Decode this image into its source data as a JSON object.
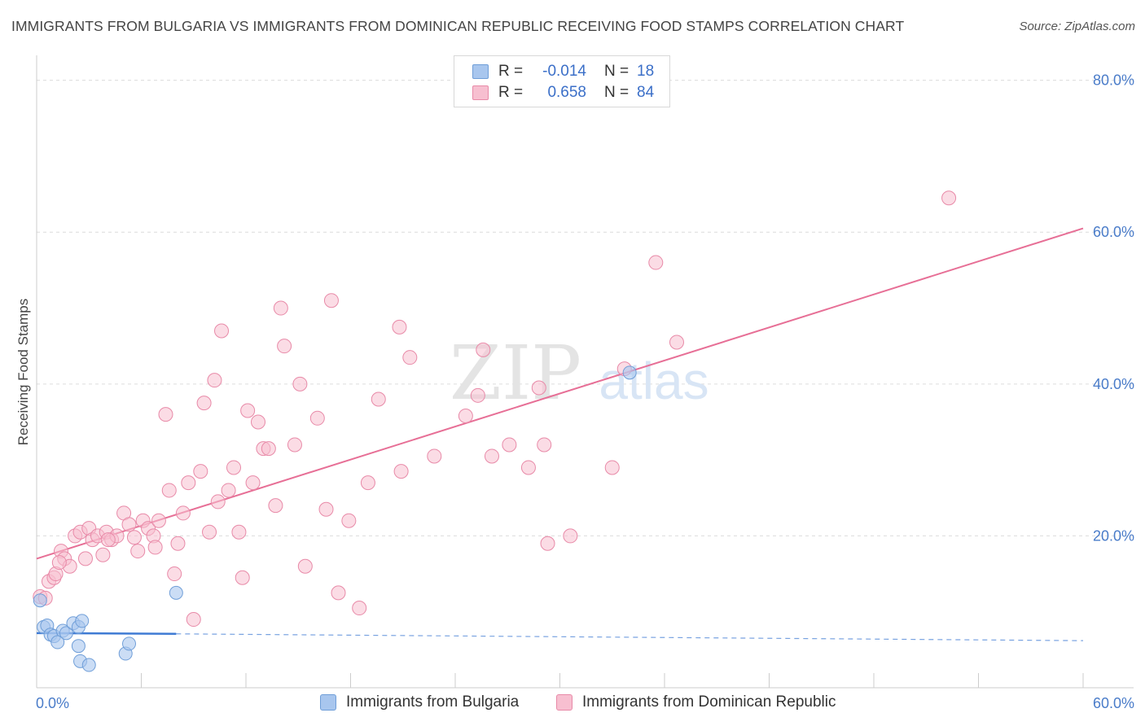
{
  "title": "IMMIGRANTS FROM BULGARIA VS IMMIGRANTS FROM DOMINICAN REPUBLIC RECEIVING FOOD STAMPS CORRELATION CHART",
  "source": "Source: ZipAtlas.com",
  "watermark": {
    "zip": "ZIP",
    "atlas": "atlas"
  },
  "legend": {
    "rows": [
      {
        "r_label": "R =",
        "r_value": "-0.014",
        "n_label": "N =",
        "n_value": "18",
        "color": "#a8c6ee",
        "border": "#6f9ed8"
      },
      {
        "r_label": "R =",
        "r_value": "0.658",
        "n_label": "N =",
        "n_value": "84",
        "color": "#f7bfd0",
        "border": "#e88aa8"
      }
    ]
  },
  "bottom_legend": {
    "bulgaria": "Immigrants from Bulgaria",
    "dominican": "Immigrants from Dominican Republic"
  },
  "chart_data": {
    "type": "scatter",
    "xlabel": "",
    "ylabel": "Receiving Food Stamps",
    "xlim": [
      0,
      60
    ],
    "ylim": [
      0,
      82
    ],
    "x_ticks": [
      "0.0%",
      "60.0%"
    ],
    "y_ticks": [
      "20.0%",
      "40.0%",
      "60.0%",
      "80.0%"
    ],
    "y_tick_values": [
      20,
      40,
      60,
      80
    ],
    "grid": true,
    "colors": {
      "bulgaria": "#6f9ed8",
      "bulgaria_fill": "#a8c6ee",
      "dominican": "#e88aa8",
      "dominican_fill": "#f7bfd0",
      "bulgaria_line": "#3f7bd4",
      "dominican_line": "#e76f96"
    },
    "series": [
      {
        "name": "Immigrants from Bulgaria",
        "points": [
          [
            0.2,
            11.5
          ],
          [
            0.4,
            8.0
          ],
          [
            0.6,
            8.2
          ],
          [
            0.8,
            7.0
          ],
          [
            1.0,
            6.8
          ],
          [
            1.2,
            6.0
          ],
          [
            1.5,
            7.5
          ],
          [
            1.7,
            7.2
          ],
          [
            2.1,
            8.5
          ],
          [
            2.4,
            8.0
          ],
          [
            2.6,
            8.8
          ],
          [
            2.5,
            3.5
          ],
          [
            3.0,
            3.0
          ],
          [
            2.4,
            5.5
          ],
          [
            5.1,
            4.5
          ],
          [
            5.3,
            5.8
          ],
          [
            8.0,
            12.5
          ],
          [
            34.0,
            41.5
          ]
        ],
        "trend": {
          "x": [
            0,
            8.0
          ],
          "y": [
            7.2,
            7.1
          ],
          "dashed_to": [
            60,
            6.2
          ]
        }
      },
      {
        "name": "Immigrants from Dominican Republic",
        "points": [
          [
            0.2,
            12.0
          ],
          [
            0.5,
            11.8
          ],
          [
            0.7,
            14.0
          ],
          [
            1.0,
            14.5
          ],
          [
            1.1,
            15.0
          ],
          [
            1.4,
            18.0
          ],
          [
            1.6,
            17.0
          ],
          [
            1.9,
            16.0
          ],
          [
            2.2,
            20.0
          ],
          [
            2.5,
            20.5
          ],
          [
            2.8,
            17.0
          ],
          [
            3.0,
            21.0
          ],
          [
            3.2,
            19.5
          ],
          [
            3.5,
            20.0
          ],
          [
            3.8,
            17.5
          ],
          [
            4.0,
            20.5
          ],
          [
            4.3,
            19.5
          ],
          [
            4.6,
            20.0
          ],
          [
            5.0,
            23.0
          ],
          [
            5.3,
            21.5
          ],
          [
            5.6,
            19.8
          ],
          [
            5.8,
            18.0
          ],
          [
            6.1,
            22.0
          ],
          [
            6.4,
            21.0
          ],
          [
            6.7,
            20.0
          ],
          [
            7.0,
            22.0
          ],
          [
            7.4,
            36.0
          ],
          [
            7.6,
            26.0
          ],
          [
            7.9,
            15.0
          ],
          [
            8.1,
            19.0
          ],
          [
            8.4,
            23.0
          ],
          [
            8.7,
            27.0
          ],
          [
            9.0,
            9.0
          ],
          [
            9.4,
            28.5
          ],
          [
            9.6,
            37.5
          ],
          [
            9.9,
            20.5
          ],
          [
            10.2,
            40.5
          ],
          [
            10.4,
            24.5
          ],
          [
            10.6,
            47.0
          ],
          [
            11.0,
            26.0
          ],
          [
            11.3,
            29.0
          ],
          [
            11.6,
            20.5
          ],
          [
            11.8,
            14.5
          ],
          [
            12.1,
            36.5
          ],
          [
            12.4,
            27.0
          ],
          [
            12.7,
            35.0
          ],
          [
            13.0,
            31.5
          ],
          [
            13.3,
            31.5
          ],
          [
            13.7,
            24.0
          ],
          [
            14.0,
            50.0
          ],
          [
            14.2,
            45.0
          ],
          [
            14.8,
            32.0
          ],
          [
            15.1,
            40.0
          ],
          [
            15.4,
            16.0
          ],
          [
            16.1,
            35.5
          ],
          [
            16.6,
            23.5
          ],
          [
            16.9,
            51.0
          ],
          [
            17.3,
            12.5
          ],
          [
            17.9,
            22.0
          ],
          [
            18.5,
            10.5
          ],
          [
            19.0,
            27.0
          ],
          [
            19.6,
            38.0
          ],
          [
            20.8,
            47.5
          ],
          [
            20.9,
            28.5
          ],
          [
            21.4,
            43.5
          ],
          [
            22.8,
            30.5
          ],
          [
            24.6,
            35.8
          ],
          [
            25.3,
            38.5
          ],
          [
            25.6,
            44.5
          ],
          [
            26.1,
            30.5
          ],
          [
            27.1,
            32.0
          ],
          [
            28.2,
            29.0
          ],
          [
            28.8,
            39.5
          ],
          [
            29.1,
            32.0
          ],
          [
            29.3,
            19.0
          ],
          [
            30.6,
            20.0
          ],
          [
            33.0,
            29.0
          ],
          [
            33.7,
            42.0
          ],
          [
            35.5,
            56.0
          ],
          [
            36.7,
            45.5
          ],
          [
            52.3,
            64.5
          ],
          [
            4.1,
            19.5
          ],
          [
            6.8,
            18.5
          ],
          [
            1.3,
            16.5
          ]
        ],
        "trend": {
          "x": [
            0,
            60
          ],
          "y": [
            17.0,
            60.5
          ]
        }
      }
    ]
  }
}
